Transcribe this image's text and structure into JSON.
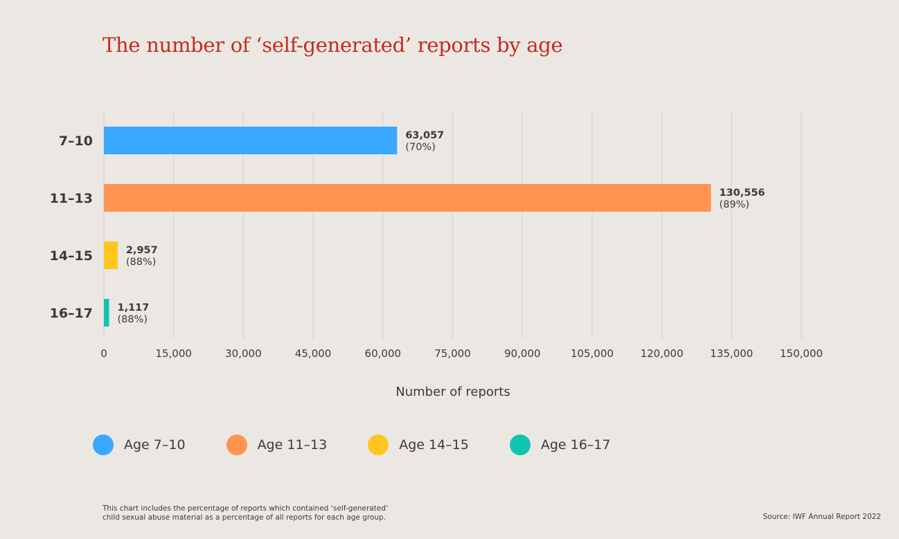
{
  "chart_data": {
    "type": "bar",
    "orientation": "horizontal",
    "title": "The number of ‘self-generated’ reports by age",
    "xlabel": "Number of reports",
    "ylabel": "",
    "categories": [
      "7–10",
      "11–13",
      "14–15",
      "16–17"
    ],
    "values": [
      63057,
      130556,
      2957,
      1117
    ],
    "value_labels": [
      "63,057",
      "130,556",
      "2,957",
      "1,117"
    ],
    "percent_labels": [
      "(70%)",
      "(89%)",
      "(88%)",
      "(88%)"
    ],
    "colors": [
      "#3aa8ff",
      "#ff9350",
      "#ffc61e",
      "#12c3b1"
    ],
    "xlim": [
      0,
      150000
    ],
    "xticks": [
      0,
      15000,
      30000,
      45000,
      60000,
      75000,
      90000,
      105000,
      120000,
      135000,
      150000
    ],
    "xtick_labels": [
      "0",
      "15,000",
      "30,000",
      "45,000",
      "60,000",
      "75,000",
      "90,000",
      "105,000",
      "120,000",
      "135,000",
      "150,000"
    ],
    "grid": "vertical",
    "legend_position": "bottom",
    "legend": [
      {
        "label": "Age 7–10",
        "color": "#3aa8ff"
      },
      {
        "label": "Age 11–13",
        "color": "#ff9350"
      },
      {
        "label": "Age 14–15",
        "color": "#ffc61e"
      },
      {
        "label": "Age 16–17",
        "color": "#12c3b1"
      }
    ]
  },
  "footnote": {
    "line1": "This chart includes the percentage of reports which contained ‘self-generated’",
    "line2": "child sexual abuse material as a percentage of all reports for each age group."
  },
  "source": "Source: IWF Annual Report 2022",
  "colors": {
    "background": "#ebe8e3",
    "title": "#c62a21",
    "grid": "#d6d3ce",
    "text": "#3a3a3a"
  }
}
